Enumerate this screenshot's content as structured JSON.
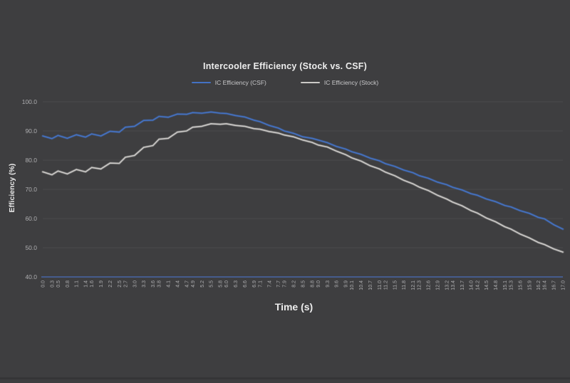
{
  "colors": {
    "background": "#3e3e40",
    "grid": "#49494c",
    "axis_line": "#4a6fbd",
    "tick_text": "#aeaeb0",
    "title_text": "#ededed",
    "csf_blue": "#4472c4",
    "stock_gray": "#cbc9c7"
  },
  "chart_data": {
    "type": "line",
    "title": "Intercooler Efficiency (Stock vs. CSF)",
    "xlabel": "Time (s)",
    "ylabel": "Efficiency (%)",
    "ylim": [
      40,
      100
    ],
    "ytick_step": 10,
    "ytick_labels": [
      "100.0",
      "90.0",
      "80.0",
      "70.0",
      "60.0",
      "50.0",
      "40.0"
    ],
    "grid": "horizontal-faint",
    "legend_position": "top-center",
    "x": [
      0.0,
      0.3,
      0.5,
      0.8,
      1.1,
      1.4,
      1.6,
      1.9,
      2.2,
      2.5,
      2.7,
      3.0,
      3.3,
      3.6,
      3.8,
      4.1,
      4.4,
      4.7,
      4.9,
      5.2,
      5.5,
      5.8,
      6.0,
      6.3,
      6.6,
      6.9,
      7.1,
      7.4,
      7.7,
      7.9,
      8.2,
      8.5,
      8.8,
      9.0,
      9.3,
      9.6,
      9.9,
      10.1,
      10.4,
      10.7,
      11.0,
      11.2,
      11.5,
      11.8,
      12.1,
      12.3,
      12.6,
      12.9,
      13.2,
      13.4,
      13.7,
      14.0,
      14.2,
      14.5,
      14.8,
      15.1,
      15.3,
      15.6,
      15.9,
      16.2,
      16.4,
      16.7,
      17.0
    ],
    "series": [
      {
        "name": "IC Efficiency (CSF)",
        "color": "#4472c4",
        "values": [
          88.3,
          87.4,
          88.5,
          87.5,
          88.7,
          87.9,
          89.0,
          88.3,
          89.9,
          89.6,
          91.3,
          91.6,
          93.6,
          93.7,
          95.0,
          94.7,
          95.8,
          95.7,
          96.3,
          96.1,
          96.5,
          96.1,
          96.0,
          95.3,
          94.8,
          93.7,
          93.2,
          91.9,
          91.0,
          90.0,
          89.2,
          88.0,
          87.5,
          86.9,
          86.0,
          84.7,
          83.8,
          82.9,
          82.0,
          80.7,
          79.8,
          78.8,
          77.9,
          76.6,
          75.7,
          74.7,
          73.8,
          72.5,
          71.6,
          70.7,
          69.8,
          68.5,
          68.0,
          66.7,
          65.8,
          64.5,
          64.0,
          62.7,
          61.8,
          60.4,
          59.9,
          57.9,
          56.4
        ]
      },
      {
        "name": "IC Efficiency (Stock)",
        "color": "#cbc9c7",
        "values": [
          76.0,
          75.0,
          76.3,
          75.3,
          76.8,
          76.0,
          77.5,
          77.0,
          79.0,
          78.9,
          81.0,
          81.6,
          84.4,
          85.0,
          87.2,
          87.5,
          89.6,
          90.0,
          91.3,
          91.6,
          92.5,
          92.3,
          92.5,
          91.9,
          91.6,
          90.8,
          90.6,
          89.8,
          89.3,
          88.6,
          88.0,
          86.9,
          86.1,
          85.2,
          84.5,
          83.1,
          81.9,
          80.8,
          79.7,
          78.1,
          77.0,
          75.9,
          74.7,
          73.1,
          71.9,
          70.8,
          69.6,
          68.0,
          66.7,
          65.6,
          64.4,
          62.7,
          61.9,
          60.2,
          58.9,
          57.2,
          56.4,
          54.7,
          53.4,
          51.8,
          51.1,
          49.6,
          48.5
        ]
      }
    ]
  }
}
